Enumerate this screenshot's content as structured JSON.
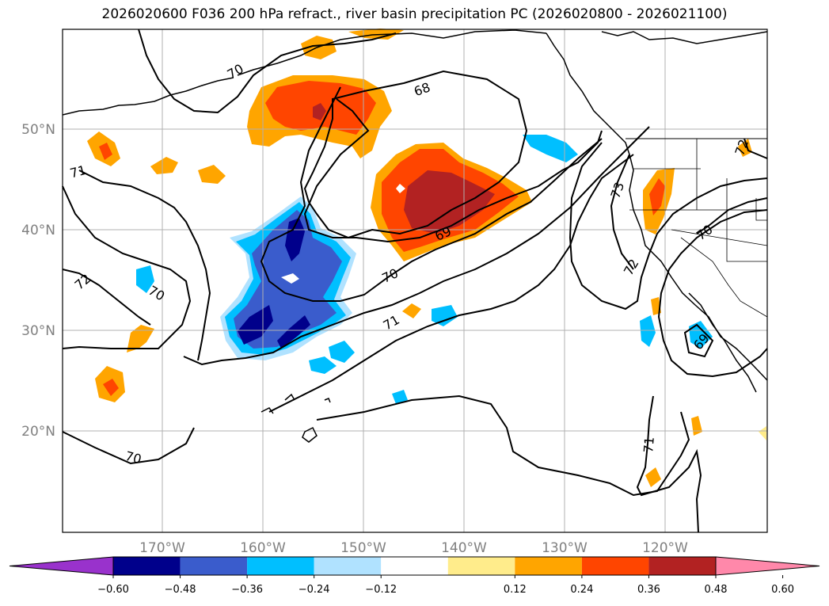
{
  "title": "2026020600 F036 200 hPa refract., river basin precipitation PC (2026020800 - 2026021100)",
  "lat_labels": [
    "50°N",
    "40°N",
    "30°N",
    "20°N"
  ],
  "lon_labels": [
    "170°W",
    "160°W",
    "150°W",
    "140°W",
    "130°W",
    "120°W"
  ],
  "contour_labels": [
    "70",
    "68",
    "71",
    "71",
    "72",
    "70",
    "69",
    "70",
    "71",
    "73",
    "72",
    "70",
    "72",
    "69",
    "71",
    "70"
  ],
  "colorbar": {
    "ticks": [
      "−0.60",
      "−0.48",
      "−0.36",
      "−0.24",
      "−0.12",
      "0.12",
      "0.24",
      "0.36",
      "0.48",
      "0.60"
    ],
    "colors": [
      "#9932cc",
      "#00008b",
      "#3a5ccc",
      "#00bfff",
      "#b0e2ff",
      "#ffffff",
      "#ffec8b",
      "#ffa500",
      "#ff4500",
      "#b22222",
      "#ff88aa"
    ]
  },
  "colors": {
    "grid": "#b0b0b0",
    "contour": "#000000",
    "coast": "#000000"
  }
}
